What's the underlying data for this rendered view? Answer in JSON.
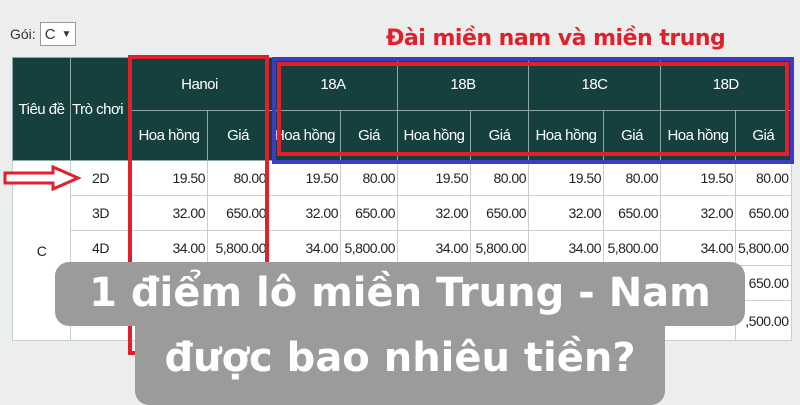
{
  "filter": {
    "label": "Gói:",
    "value": "C"
  },
  "annotation": {
    "label": "Đài miền nam và miền trung",
    "color": "#e0202a",
    "box_color_inner": "#e0202a",
    "box_color_outer": "#3b3bc4"
  },
  "table": {
    "col_title": "Tiêu đề",
    "col_game": "Trò chơi",
    "groups": [
      "Hanoi",
      "18A",
      "18B",
      "18C",
      "18D"
    ],
    "sub_headers": [
      "Hoa hồng",
      "Giá"
    ],
    "package": "C",
    "rows": [
      {
        "game": "2D",
        "values": [
          "19.50",
          "80.00",
          "19.50",
          "80.00",
          "19.50",
          "80.00",
          "19.50",
          "80.00",
          "19.50",
          "80.00"
        ]
      },
      {
        "game": "3D",
        "values": [
          "32.00",
          "650.00",
          "32.00",
          "650.00",
          "32.00",
          "650.00",
          "32.00",
          "650.00",
          "32.00",
          "650.00"
        ]
      },
      {
        "game": "4D",
        "values": [
          "34.00",
          "5,800.00",
          "34.00",
          "5,800.00",
          "34.00",
          "5,800.00",
          "34.00",
          "5,800.00",
          "34.00",
          "5,800.00"
        ]
      },
      {
        "game": "",
        "values": [
          "",
          "",
          "",
          "",
          "",
          "",
          "",
          "",
          "",
          "650.00"
        ]
      },
      {
        "game": "",
        "values": [
          "",
          "",
          "",
          "",
          "",
          "",
          "",
          "",
          "",
          ",500.00"
        ]
      }
    ]
  },
  "overlay": {
    "line1": "1 điểm lô miền Trung - Nam",
    "line2": "được bao nhiêu tiền?",
    "bg": "#9b9b9b"
  }
}
